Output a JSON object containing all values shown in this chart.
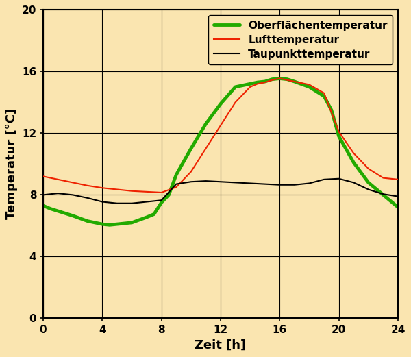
{
  "background_color": "#FAE5B0",
  "xlim": [
    0,
    24
  ],
  "ylim": [
    0,
    20
  ],
  "xticks": [
    0,
    4,
    8,
    12,
    16,
    20,
    24
  ],
  "yticks": [
    0,
    4,
    8,
    12,
    16,
    20
  ],
  "xlabel": "Zeit [h]",
  "ylabel": "Temperatur [°C]",
  "xlabel_fontsize": 13,
  "ylabel_fontsize": 13,
  "grid_color": "#000000",
  "grid_linewidth": 0.8,
  "taupunkt_x": [
    0,
    0.5,
    1,
    2,
    3,
    4,
    5,
    6,
    7,
    7.5,
    8,
    9,
    10,
    11,
    12,
    13,
    14,
    15,
    16,
    17,
    18,
    19,
    20,
    21,
    22,
    23,
    24
  ],
  "taupunkt_y": [
    8.0,
    8.05,
    8.1,
    8.0,
    7.8,
    7.55,
    7.45,
    7.45,
    7.55,
    7.6,
    7.65,
    8.7,
    8.85,
    8.9,
    8.85,
    8.8,
    8.75,
    8.7,
    8.65,
    8.65,
    8.75,
    9.0,
    9.05,
    8.8,
    8.35,
    8.05,
    7.9
  ],
  "taupunkt_color": "#000000",
  "taupunkt_linewidth": 1.5,
  "taupunkt_label": "Taupunkttemperatur",
  "oberflaeche_x": [
    0,
    0.5,
    1,
    2,
    3,
    4,
    4.5,
    5,
    6,
    7,
    7.5,
    8,
    8.5,
    9,
    10,
    11,
    12,
    13,
    14,
    14.5,
    15,
    15.5,
    16,
    16.5,
    17,
    18,
    19,
    19.5,
    20,
    21,
    22,
    23,
    24
  ],
  "oberflaeche_y": [
    7.3,
    7.1,
    6.95,
    6.65,
    6.3,
    6.1,
    6.05,
    6.1,
    6.2,
    6.55,
    6.75,
    7.5,
    8.0,
    9.3,
    11.0,
    12.6,
    13.9,
    15.0,
    15.2,
    15.3,
    15.35,
    15.5,
    15.55,
    15.5,
    15.35,
    15.0,
    14.4,
    13.5,
    11.8,
    10.1,
    8.8,
    8.0,
    7.2
  ],
  "oberflaeche_color": "#22AA00",
  "oberflaeche_linewidth": 3.5,
  "oberflaeche_label": "Oberflächentemperatur",
  "luft_x": [
    0,
    1,
    2,
    3,
    4,
    5,
    6,
    7,
    8,
    9,
    10,
    11,
    12,
    13,
    14,
    14.5,
    15,
    15.5,
    16,
    17,
    18,
    19,
    20,
    21,
    22,
    23,
    24
  ],
  "luft_y": [
    9.2,
    9.0,
    8.8,
    8.6,
    8.45,
    8.35,
    8.25,
    8.2,
    8.15,
    8.5,
    9.5,
    11.0,
    12.5,
    14.0,
    15.0,
    15.2,
    15.3,
    15.45,
    15.55,
    15.35,
    15.15,
    14.6,
    12.1,
    10.7,
    9.7,
    9.1,
    9.0
  ],
  "luft_color": "#EE2200",
  "luft_linewidth": 1.5,
  "luft_label": "Lufttemperatur",
  "legend_fontsize": 11,
  "legend_loc": "upper right",
  "legend_bold": true
}
